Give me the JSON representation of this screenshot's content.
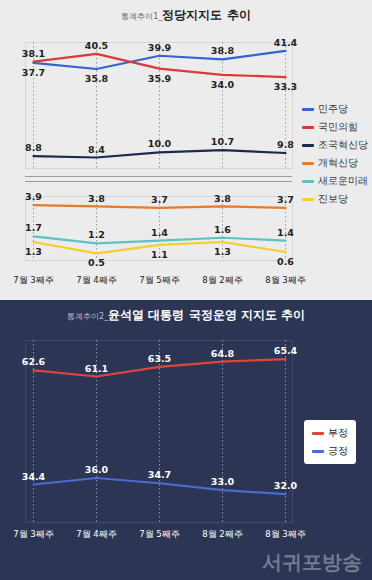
{
  "chart_data": [
    {
      "type": "line",
      "title": "통계추이1_정당지지도 추이",
      "categories": [
        "7월 3째주",
        "7월 4째주",
        "7월 5째주",
        "8월 2째주",
        "8월 3째주"
      ],
      "series": [
        {
          "name": "민주당",
          "color": "#3563d0",
          "values": [
            37.7,
            35.8,
            39.9,
            38.8,
            41.4
          ],
          "value_labels": [
            "37.7",
            "35.8",
            "39.9",
            "38.8",
            "41.4"
          ]
        },
        {
          "name": "국민의힘",
          "color": "#db3a34",
          "values": [
            38.1,
            40.5,
            35.9,
            34.0,
            33.3
          ],
          "value_labels": [
            "38.1",
            "40.5",
            "35.9",
            "34.0",
            "33.3"
          ]
        },
        {
          "name": "조국혁신당",
          "color": "#1e2a4d",
          "values": [
            8.8,
            8.4,
            10.0,
            10.7,
            9.8
          ],
          "value_labels": [
            "8.8",
            "8.4",
            "10.0",
            "10.7",
            "9.8"
          ]
        }
      ],
      "ylim": [
        5,
        44
      ],
      "yticks": [],
      "grid": true,
      "data_labels": true,
      "tick_labels": false,
      "legend": "right"
    },
    {
      "type": "line",
      "categories": [
        "7월 3째주",
        "7월 4째주",
        "7월 5째주",
        "8월 2째주",
        "8월 3째주"
      ],
      "series": [
        {
          "name": "개혁신당",
          "color": "#e9792b",
          "values": [
            3.9,
            3.8,
            3.7,
            3.8,
            3.7
          ],
          "value_labels": [
            "3.9",
            "3.8",
            "3.7",
            "3.8",
            "3.7"
          ]
        },
        {
          "name": "새로운미래",
          "color": "#5cc3c0",
          "values": [
            1.7,
            1.2,
            1.4,
            1.6,
            1.4
          ],
          "value_labels": [
            "1.7",
            "1.2",
            "1.4",
            "1.6",
            "1.4"
          ]
        },
        {
          "name": "진보당",
          "color": "#f2cf2a",
          "values": [
            1.3,
            0.5,
            1.1,
            1.3,
            0.6
          ],
          "value_labels": [
            "1.3",
            "0.5",
            "1.1",
            "1.3",
            "0.6"
          ]
        }
      ],
      "ylim": [
        0,
        4.5
      ],
      "yticks": [],
      "grid": true,
      "data_labels": true,
      "tick_labels": "x",
      "legend": "right"
    },
    {
      "type": "line",
      "title": "통계추이2_윤석열 대통령 국정운영 지지도 추이",
      "categories": [
        "7월 3째주",
        "7월 4째주",
        "7월 5째주",
        "8월 2째주",
        "8월 3째주"
      ],
      "series": [
        {
          "name": "부정",
          "color": "#e0453a",
          "values": [
            62.6,
            61.1,
            63.5,
            64.8,
            65.4
          ],
          "value_labels": [
            "62.6",
            "61.1",
            "63.5",
            "64.8",
            "65.4"
          ]
        },
        {
          "name": "긍정",
          "color": "#4a6bd0",
          "values": [
            34.4,
            36.0,
            34.7,
            33.0,
            32.0
          ],
          "value_labels": [
            "34.4",
            "36.0",
            "34.7",
            "33.0",
            "32.0"
          ]
        }
      ],
      "ylim": [
        25,
        70
      ],
      "yticks": [],
      "grid": true,
      "data_labels": true,
      "tick_labels": "x",
      "legend": "right",
      "annotations": [
        "서귀포방송"
      ]
    }
  ]
}
